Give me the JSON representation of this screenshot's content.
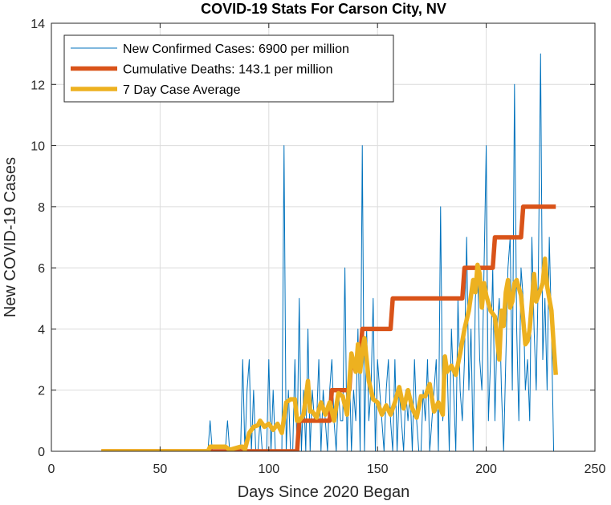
{
  "chart_data": {
    "type": "line",
    "title": "COVID-19 Stats For Carson City, NV",
    "xlabel": "Days Since 2020 Began",
    "ylabel": "New COVID-19 Cases",
    "xlim": [
      0,
      250
    ],
    "ylim": [
      0,
      14
    ],
    "xticks": [
      "0",
      "50",
      "100",
      "150",
      "200",
      "250"
    ],
    "yticks": [
      "0",
      "2",
      "4",
      "6",
      "8",
      "10",
      "12",
      "14"
    ],
    "grid": true,
    "legend_position": "top-left",
    "series": [
      {
        "name": "New Confirmed Cases: 6900 per million",
        "color": "#0072BD",
        "style": "thin",
        "x": [
          72,
          73,
          74,
          76,
          78,
          79,
          80,
          81,
          82,
          83,
          84,
          86,
          87,
          88,
          89,
          90,
          91,
          92,
          93,
          94,
          95,
          96,
          97,
          98,
          99,
          100,
          101,
          102,
          103,
          104,
          105,
          106,
          107,
          108,
          109,
          110,
          111,
          112,
          113,
          114,
          115,
          116,
          117,
          118,
          119,
          120,
          121,
          122,
          123,
          124,
          125,
          126,
          127,
          128,
          129,
          130,
          131,
          132,
          133,
          134,
          135,
          136,
          137,
          138,
          139,
          140,
          141,
          142,
          143,
          144,
          145,
          146,
          147,
          148,
          149,
          150,
          151,
          152,
          153,
          154,
          155,
          156,
          157,
          158,
          159,
          160,
          161,
          162,
          163,
          164,
          165,
          166,
          167,
          168,
          169,
          170,
          171,
          172,
          173,
          174,
          175,
          176,
          177,
          178,
          179,
          180,
          181,
          182,
          183,
          184,
          185,
          186,
          187,
          188,
          189,
          190,
          191,
          192,
          193,
          194,
          195,
          196,
          197,
          198,
          199,
          200,
          201,
          202,
          203,
          204,
          205,
          206,
          207,
          208,
          209,
          210,
          211,
          212,
          213,
          214,
          215,
          216,
          217,
          218,
          219,
          220,
          221,
          222,
          223,
          224,
          225,
          226,
          227,
          228,
          229,
          230,
          231,
          232
        ],
        "values": [
          0,
          1,
          0,
          0,
          0,
          0,
          0,
          1,
          0,
          0,
          0,
          0,
          0,
          3,
          0,
          2,
          3,
          0,
          2,
          0,
          0,
          1,
          0,
          0,
          0,
          3,
          0,
          2,
          0,
          0,
          0,
          0,
          10,
          0,
          2,
          0,
          0,
          3,
          0,
          5,
          0,
          2,
          0,
          4,
          0,
          2,
          1,
          1,
          3,
          0,
          2,
          1,
          0,
          2,
          3,
          1,
          0,
          2,
          1,
          1,
          6,
          0,
          3,
          0,
          2,
          1,
          4,
          0,
          10,
          0,
          4,
          1,
          2,
          5,
          0,
          3,
          2,
          1,
          0,
          2,
          3,
          1,
          0,
          3,
          0,
          2,
          1,
          0,
          2,
          1,
          2,
          0,
          3,
          1,
          0,
          0,
          2,
          1,
          3,
          0,
          1,
          2,
          3,
          0,
          8,
          1,
          2,
          3,
          0,
          4,
          2,
          0,
          5,
          2,
          1,
          3,
          7,
          2,
          4,
          0,
          5,
          6,
          3,
          2,
          6,
          10,
          1,
          3,
          6,
          1,
          4,
          5,
          2,
          0,
          3,
          6,
          7,
          2,
          12,
          4,
          1,
          6,
          5,
          2,
          3,
          1,
          7,
          4,
          2,
          6,
          13,
          3,
          5,
          2,
          7,
          4,
          0,
          0
        ]
      },
      {
        "name": "Cumulative Deaths: 143.1 per million",
        "color": "#D95319",
        "style": "thick",
        "x": [
          23,
          113,
          114,
          128,
          129,
          137,
          138,
          142,
          143,
          156,
          157,
          189,
          190,
          203,
          204,
          216,
          217,
          232
        ],
        "values": [
          0,
          0,
          1,
          1,
          2,
          2,
          3,
          3,
          4,
          4,
          5,
          5,
          6,
          6,
          7,
          7,
          8,
          8
        ]
      },
      {
        "name": "7 Day Case Average",
        "color": "#EDB120",
        "style": "thick",
        "x": [
          23,
          72,
          73,
          80,
          82,
          87,
          88,
          89,
          91,
          93,
          95,
          96,
          98,
          100,
          102,
          104,
          106,
          108,
          110,
          112,
          113,
          114,
          116,
          118,
          119,
          120,
          122,
          124,
          126,
          128,
          130,
          132,
          134,
          136,
          138,
          140,
          141,
          142,
          143,
          144,
          146,
          148,
          150,
          152,
          154,
          156,
          158,
          160,
          162,
          164,
          166,
          168,
          170,
          172,
          174,
          176,
          178,
          180,
          181,
          182,
          184,
          186,
          188,
          190,
          192,
          194,
          195,
          196,
          197,
          198,
          199,
          200,
          202,
          204,
          206,
          207,
          208,
          209,
          210,
          211,
          212,
          213,
          214,
          216,
          218,
          219,
          220,
          221,
          222,
          223,
          224,
          226,
          227,
          228,
          229,
          230,
          231,
          232
        ],
        "values": [
          0,
          0,
          0.15,
          0.15,
          0.05,
          0.15,
          0.15,
          0.05,
          0.6,
          0.8,
          0.85,
          1,
          0.8,
          0.9,
          0.7,
          0.9,
          0.6,
          1.6,
          1.7,
          1.7,
          1,
          1,
          1.2,
          2.3,
          1.3,
          1.3,
          1.1,
          1.6,
          1.2,
          1.6,
          1,
          1.9,
          1.8,
          1.2,
          3.2,
          2.6,
          3.5,
          2.6,
          3.3,
          3.7,
          2.3,
          1.7,
          1.6,
          1.2,
          1.5,
          1.2,
          1.6,
          2.1,
          1.4,
          2,
          1.4,
          1.1,
          1.8,
          1.8,
          2.2,
          1.3,
          1.6,
          1.2,
          3.1,
          2.6,
          2.8,
          2.5,
          3.2,
          4,
          4.6,
          5.6,
          5.2,
          6.1,
          5.8,
          4.7,
          5.5,
          5.1,
          4.6,
          4.4,
          3,
          4.6,
          4.1,
          5.2,
          5.6,
          4.7,
          4.9,
          5.5,
          5.6,
          5.1,
          3.5,
          3.6,
          4,
          4.9,
          5.8,
          4.9,
          5.1,
          5.5,
          6.3,
          5.4,
          5,
          4.6,
          3.5,
          2.5
        ]
      }
    ]
  }
}
